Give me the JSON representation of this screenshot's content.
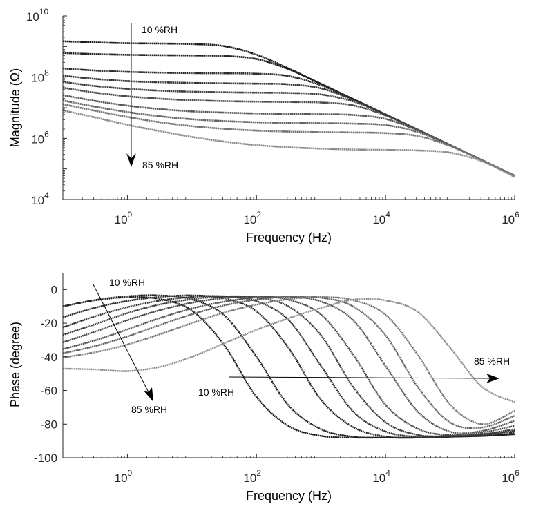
{
  "chart_data": [
    {
      "type": "line",
      "xlabel": "Frequency (Hz)",
      "ylabel": "Magnitude (Ω)",
      "x_scale": "log",
      "y_scale": "log",
      "xlim": [
        0.1,
        1000000
      ],
      "ylim": [
        10000,
        10000000000
      ],
      "x_tick_exponents": [
        "0",
        "2",
        "4",
        "6"
      ],
      "y_tick_exponents": [
        "4",
        "6",
        "8",
        "10"
      ],
      "tick_base": "10",
      "grid": false,
      "annotations": {
        "top": "10 %RH",
        "bottom": "85 %RH"
      },
      "x": [
        0.1,
        0.316,
        1,
        3.16,
        10,
        31.6,
        100,
        316,
        1000,
        3162,
        10000,
        31623,
        100000,
        316228,
        1000000
      ],
      "series": [
        {
          "color": "#1a1a1a",
          "values": [
            1480000000.0,
            1360000000.0,
            1280000000.0,
            1250000000.0,
            1200000000.0,
            1030000000.0,
            540000000.0,
            190000000.0,
            60000000.0,
            19000000.0,
            6000000.0,
            1900000.0,
            600000.0,
            190000.0,
            60000.0
          ]
        },
        {
          "color": "#222222",
          "values": [
            615000000.0,
            565000000.0,
            535000000.0,
            520000000.0,
            510000000.0,
            490000000.0,
            390000000.0,
            180000000.0,
            60000000.0,
            19000000.0,
            6000000.0,
            1900000.0,
            600000.0,
            190000.0,
            60000.0
          ]
        },
        {
          "color": "#2b2b2b",
          "values": [
            192000000.0,
            164000000.0,
            148000000.0,
            140000000.0,
            135000000.0,
            133000000.0,
            129000000.0,
            108000000.0,
            54000000.0,
            19000000.0,
            6000000.0,
            1900000.0,
            600000.0,
            190000.0,
            60000.0
          ]
        },
        {
          "color": "#343434",
          "values": [
            111000000.0,
            87000000.0,
            74000000.0,
            68000000.0,
            64500000.0,
            62500000.0,
            61000000.0,
            58000000.0,
            43000000.0,
            18000000.0,
            6000000.0,
            1900000.0,
            600000.0,
            190000.0,
            60000.0
          ]
        },
        {
          "color": "#3e3e3e",
          "values": [
            70000000.0,
            51000000.0,
            41500000.0,
            36000000.0,
            33300000.0,
            31800000.0,
            31000000.0,
            30300000.0,
            27100000.0,
            16000000.0,
            5900000.0,
            1900000.0,
            600000.0,
            190000.0,
            60000.0
          ]
        },
        {
          "color": "#4a4a4a",
          "values": [
            45000000.0,
            31000000.0,
            23600000.0,
            19700000.0,
            17600000.0,
            16400000.0,
            15800000.0,
            15400000.0,
            14800000.0,
            11900000.0,
            5600000.0,
            1900000.0,
            600000.0,
            190000.0,
            60000.0
          ]
        },
        {
          "color": "#575757",
          "values": [
            25800000.0,
            16600000.0,
            11700000.0,
            9000000.0,
            7600000.0,
            6900000.0,
            6500000.0,
            6270000.0,
            6100000.0,
            5800000.0,
            4300000.0,
            1800000.0,
            600000.0,
            190000.0,
            60000.0
          ]
        },
        {
          "color": "#646464",
          "values": [
            17300000.0,
            10800000.0,
            7200000.0,
            5250000.0,
            4200000.0,
            3660000.0,
            3350000.0,
            3200000.0,
            3100000.0,
            3020000.0,
            2700000.0,
            1600000.0,
            590000.0,
            190000.0,
            60000.0
          ]
        },
        {
          "color": "#737373",
          "values": [
            13000000.0,
            7950000.0,
            5000000.0,
            3360000.0,
            2500000.0,
            2040000.0,
            1790000.0,
            1660000.0,
            1590000.0,
            1550000.0,
            1480000.0,
            1190000.0,
            560000.0,
            190000.0,
            60000.0
          ]
        },
        {
          "color": "#8c8c8c",
          "values": [
            8200000.0,
            4800000.0,
            2760000.0,
            1720000.0,
            1110000.0,
            780000.0,
            600000.0,
            510000.0,
            460000.0,
            430000.0,
            417000.0,
            400000.0,
            340000.0,
            175000.0,
            55000.0
          ]
        }
      ]
    },
    {
      "type": "line",
      "xlabel": "Frequency (Hz)",
      "ylabel": "Phase (degree)",
      "x_scale": "log",
      "y_scale": "linear",
      "xlim": [
        0.1,
        1000000
      ],
      "ylim": [
        -100,
        10
      ],
      "x_tick_exponents": [
        "0",
        "2",
        "4",
        "6"
      ],
      "y_ticks": [
        "0",
        "-20",
        "-40",
        "-60",
        "-80",
        "-100"
      ],
      "tick_base": "10",
      "grid": false,
      "annotations": {
        "left_top": "10 %RH",
        "left_bottom": "85 %RH",
        "right_start": "10 %RH",
        "right_end": "85 %RH"
      },
      "x": [
        0.1,
        0.316,
        1,
        3.16,
        10,
        31.6,
        100,
        316,
        1000,
        3162,
        10000,
        31623,
        100000,
        316228,
        1000000
      ],
      "series": [
        {
          "color": "#1a1a1a",
          "values": [
            -10,
            -6.4,
            -4.6,
            -5.6,
            -12.5,
            -33,
            -63.8,
            -81.2,
            -87,
            -88,
            -88,
            -88,
            -87.5,
            -87,
            -86
          ]
        },
        {
          "color": "#222222",
          "values": [
            -10,
            -6.2,
            -4,
            -3.5,
            -5.9,
            -15.3,
            -40,
            -69,
            -83,
            -87.5,
            -88,
            -88,
            -87.5,
            -87,
            -86
          ]
        },
        {
          "color": "#2b2b2b",
          "values": [
            -16.5,
            -10.8,
            -6.8,
            -4.4,
            -3.5,
            -5.2,
            -13,
            -34.9,
            -65.5,
            -81.8,
            -87.4,
            -88,
            -87.5,
            -86.5,
            -85
          ]
        },
        {
          "color": "#343434",
          "values": [
            -22.5,
            -15.9,
            -10.5,
            -6.6,
            -4.4,
            -4,
            -6.9,
            -18.2,
            -45.4,
            -72.6,
            -84.4,
            -87.5,
            -87,
            -86,
            -84
          ]
        },
        {
          "color": "#3e3e3e",
          "values": [
            -27,
            -20.6,
            -14,
            -8.9,
            -5.8,
            -4.1,
            -4.8,
            -10.1,
            -27.2,
            -58,
            -78.9,
            -86.4,
            -87,
            -86,
            -83
          ]
        },
        {
          "color": "#4a4a4a",
          "values": [
            -31.4,
            -25,
            -18.2,
            -12.3,
            -7.8,
            -5.1,
            -4.1,
            -6.1,
            -14.9,
            -38.8,
            -68.5,
            -82.8,
            -86.5,
            -85,
            -81
          ]
        },
        {
          "color": "#575757",
          "values": [
            -35.4,
            -30.2,
            -23.7,
            -17,
            -11.2,
            -7.2,
            -4.7,
            -4.2,
            -7.1,
            -18.3,
            -45.4,
            -72.6,
            -84.5,
            -84,
            -78
          ]
        },
        {
          "color": "#646464",
          "values": [
            -37.9,
            -33.6,
            -27.9,
            -21.1,
            -14.7,
            -9.4,
            -6,
            -4.3,
            -4.8,
            -10.1,
            -27.2,
            -58,
            -79,
            -82,
            -75
          ]
        },
        {
          "color": "#737373",
          "values": [
            -40.4,
            -37.3,
            -32.7,
            -26.6,
            -19.9,
            -13.7,
            -9,
            -5.7,
            -4.5,
            -6.3,
            -15,
            -38.9,
            -68.4,
            -80,
            -72
          ]
        },
        {
          "color": "#8c8c8c",
          "values": [
            -47,
            -47.5,
            -48.5,
            -46,
            -40,
            -32,
            -24,
            -17,
            -11,
            -6,
            -6.5,
            -13.3,
            -34.6,
            -58,
            -67
          ]
        }
      ]
    }
  ]
}
